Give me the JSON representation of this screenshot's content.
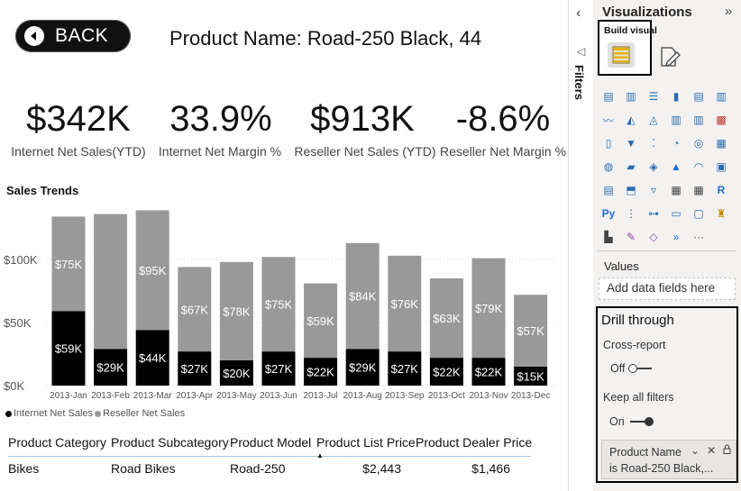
{
  "report": {
    "back_label": "BACK",
    "product_title": "Product Name: Road-250 Black, 44",
    "kpis": [
      {
        "value": "$342K",
        "label": "Internet Net Sales(YTD)"
      },
      {
        "value": "33.9%",
        "label": "Internet Net Margin %"
      },
      {
        "value": "$913K",
        "label": "Reseller Net Sales (YTD)"
      },
      {
        "value": "-8.6%",
        "label": "Reseller Net Margin %"
      }
    ],
    "sales_trends_title": "Sales Trends",
    "legend": {
      "internet": "Internet Net Sales",
      "reseller": "Reseller Net Sales"
    },
    "table": {
      "headers": [
        "Product Category",
        "Product Subcategory",
        "Product Model",
        "Product List Price",
        "Product Dealer Price"
      ],
      "rows": [
        [
          "Bikes",
          "Road Bikes",
          "Road-250",
          "$2,443",
          "$1,466"
        ]
      ]
    }
  },
  "chart_data": {
    "type": "bar",
    "stacked": true,
    "categories": [
      "2013-Jan",
      "2013-Feb",
      "2013-Mar",
      "2013-Apr",
      "2013-May",
      "2013-Jun",
      "2013-Jul",
      "2013-Aug",
      "2013-Sep",
      "2013-Oct",
      "2013-Nov",
      "2013-Dec"
    ],
    "series": [
      {
        "name": "Internet Net Sales",
        "color": "#000000",
        "values": [
          59,
          29,
          44,
          27,
          20,
          27,
          22,
          29,
          27,
          22,
          22,
          15
        ],
        "labels": [
          "$59K",
          "$29K",
          "$44K",
          "$27K",
          "$20K",
          "$27K",
          "$22K",
          "$29K",
          "$27K",
          "$22K",
          "$22K",
          "$15K"
        ]
      },
      {
        "name": "Reseller Net Sales",
        "color": "#999999",
        "values": [
          75,
          107,
          95,
          67,
          78,
          75,
          59,
          84,
          76,
          63,
          79,
          57
        ],
        "labels": [
          "$75K",
          "",
          "$95K",
          "$67K",
          "$78K",
          "$75K",
          "$59K",
          "$84K",
          "$76K",
          "$63K",
          "$79K",
          "$57K"
        ]
      }
    ],
    "y_ticks": [
      "$0K",
      "$50K",
      "$100K"
    ],
    "y_tick_values": [
      0,
      50,
      100
    ],
    "ylim": [
      0,
      140
    ],
    "grid": true,
    "legend_position": "bottom-left",
    "sort_indicator": "Product List Price"
  },
  "filters_strip": {
    "label": "Filters"
  },
  "viz_pane": {
    "title": "Visualizations",
    "build_visual_label": "Build visual",
    "values_label": "Values",
    "values_placeholder": "Add data fields here",
    "drill_through": {
      "title": "Drill through",
      "cross_report_label": "Cross-report",
      "cross_report_state": "Off",
      "keep_filters_label": "Keep all filters",
      "keep_filters_state": "On",
      "filter_card_field": "Product Name",
      "filter_card_condition": "is Road-250 Black,..."
    },
    "more_visuals": "···"
  }
}
